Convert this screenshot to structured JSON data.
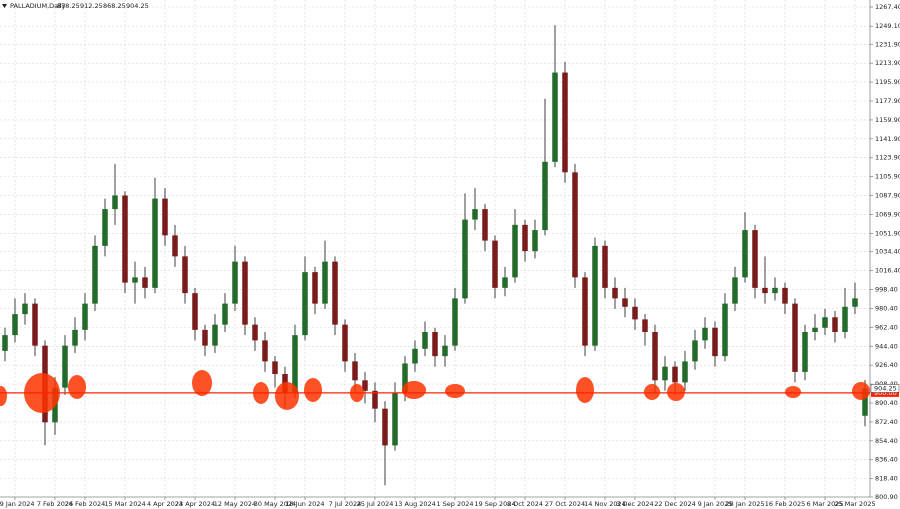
{
  "chart_data": {
    "type": "candlestick",
    "symbol": "PALLADIUM,Daily",
    "up_color": "#236b2b",
    "down_color": "#7b1c1c",
    "wick_color": "#111111",
    "grid": true,
    "level": {
      "value": 900,
      "label": "900.00",
      "color": "#ff2200"
    },
    "xlim": [
      -0.5,
      86.5
    ],
    "ylim": [
      800.9,
      1267.4
    ],
    "open": [
      940,
      955,
      975,
      985,
      945,
      872,
      905,
      945,
      960,
      985,
      1040,
      1075,
      1088,
      1005,
      1010,
      1000,
      1085,
      1050,
      1030,
      995,
      960,
      945,
      965,
      985,
      1025,
      965,
      950,
      930,
      918,
      900,
      955,
      1015,
      985,
      1025,
      965,
      930,
      912,
      902,
      885,
      850,
      900,
      928,
      942,
      958,
      935,
      945,
      990,
      1065,
      1075,
      1045,
      1000,
      1010,
      1060,
      1035,
      1055,
      1120,
      1205,
      1110,
      1010,
      945,
      1040,
      1000,
      990,
      982,
      970,
      958,
      912,
      925,
      910,
      930,
      950,
      962,
      935,
      985,
      1010,
      1055,
      1000,
      995,
      1000,
      985,
      920,
      958,
      962,
      972,
      958,
      982,
      878.25
    ],
    "high": [
      962,
      990,
      995,
      990,
      950,
      915,
      955,
      972,
      995,
      1050,
      1085,
      1118,
      1092,
      1025,
      1020,
      1105,
      1095,
      1060,
      1040,
      1000,
      965,
      975,
      995,
      1040,
      1030,
      972,
      958,
      935,
      925,
      965,
      1030,
      1020,
      1045,
      1030,
      970,
      938,
      920,
      910,
      892,
      910,
      935,
      950,
      968,
      962,
      955,
      1000,
      1090,
      1095,
      1080,
      1050,
      1020,
      1075,
      1065,
      1065,
      1180,
      1250,
      1215,
      1118,
      1015,
      1048,
      1045,
      1010,
      1000,
      990,
      975,
      965,
      935,
      930,
      940,
      960,
      972,
      968,
      995,
      1020,
      1072,
      1060,
      1030,
      1010,
      1005,
      990,
      965,
      975,
      980,
      978,
      1000,
      1005,
      912.25
    ],
    "low": [
      930,
      948,
      965,
      935,
      850,
      860,
      898,
      938,
      950,
      978,
      1030,
      1060,
      995,
      985,
      990,
      995,
      1040,
      1020,
      985,
      950,
      935,
      938,
      958,
      978,
      955,
      940,
      920,
      905,
      885,
      895,
      950,
      975,
      980,
      955,
      920,
      900,
      890,
      872,
      812,
      845,
      892,
      920,
      935,
      925,
      925,
      940,
      985,
      1055,
      1035,
      990,
      992,
      1005,
      1025,
      1028,
      1050,
      1115,
      1100,
      1000,
      935,
      940,
      990,
      980,
      972,
      960,
      945,
      900,
      902,
      898,
      902,
      922,
      942,
      925,
      930,
      978,
      1005,
      990,
      985,
      988,
      975,
      910,
      912,
      950,
      955,
      948,
      952,
      975,
      868.25
    ],
    "close": [
      955,
      975,
      985,
      945,
      872,
      905,
      945,
      960,
      985,
      1040,
      1075,
      1088,
      1005,
      1010,
      1000,
      1085,
      1050,
      1030,
      995,
      960,
      945,
      965,
      985,
      1025,
      965,
      950,
      930,
      918,
      900,
      955,
      1015,
      985,
      1025,
      965,
      930,
      912,
      902,
      885,
      850,
      900,
      928,
      942,
      958,
      935,
      945,
      990,
      1065,
      1075,
      1045,
      1000,
      1010,
      1060,
      1035,
      1055,
      1120,
      1205,
      1110,
      1010,
      945,
      1040,
      1000,
      990,
      982,
      970,
      958,
      912,
      925,
      910,
      930,
      950,
      962,
      935,
      985,
      1010,
      1055,
      1000,
      995,
      1000,
      985,
      920,
      958,
      962,
      972,
      958,
      982,
      990,
      904.25
    ],
    "xticks": [
      {
        "value": 1,
        "label": "19 Jan 2024"
      },
      {
        "value": 5,
        "label": "7 Feb 2024"
      },
      {
        "value": 8,
        "label": "26 Feb 2024"
      },
      {
        "value": 12,
        "label": "15 Mar 2024"
      },
      {
        "value": 16,
        "label": "4 Apr 2024"
      },
      {
        "value": 19,
        "label": "23 Apr 2024"
      },
      {
        "value": 23,
        "label": "12 May 2024"
      },
      {
        "value": 27,
        "label": "30 May 2024"
      },
      {
        "value": 30,
        "label": "18 Jun 2024"
      },
      {
        "value": 34,
        "label": "7 Jul 2024"
      },
      {
        "value": 37,
        "label": "25 Jul 2024"
      },
      {
        "value": 41,
        "label": "13 Aug 2024"
      },
      {
        "value": 45,
        "label": "1 Sep 2024"
      },
      {
        "value": 49,
        "label": "19 Sep 2024"
      },
      {
        "value": 52,
        "label": "8 Oct 2024"
      },
      {
        "value": 56,
        "label": "27 Oct 2024"
      },
      {
        "value": 60,
        "label": "14 Nov 2024"
      },
      {
        "value": 63,
        "label": "3 Dec 2024"
      },
      {
        "value": 67,
        "label": "22 Dec 2024"
      },
      {
        "value": 71,
        "label": "9 Jan 2025"
      },
      {
        "value": 74,
        "label": "28 Jan 2025"
      },
      {
        "value": 78,
        "label": "16 Feb 2025"
      },
      {
        "value": 82,
        "label": "6 Mar 2025"
      },
      {
        "value": 85,
        "label": "25 Mar 2025"
      }
    ],
    "yticks": [
      {
        "value": 1267.4,
        "label": "1267.40"
      },
      {
        "value": 1249.1,
        "label": "1249.10"
      },
      {
        "value": 1231.9,
        "label": "1231.90"
      },
      {
        "value": 1213.9,
        "label": "1213.90"
      },
      {
        "value": 1195.9,
        "label": "1195.90"
      },
      {
        "value": 1177.9,
        "label": "1177.90"
      },
      {
        "value": 1159.9,
        "label": "1159.90"
      },
      {
        "value": 1141.9,
        "label": "1141.90"
      },
      {
        "value": 1123.9,
        "label": "1123.90"
      },
      {
        "value": 1105.9,
        "label": "1105.90"
      },
      {
        "value": 1087.9,
        "label": "1087.90"
      },
      {
        "value": 1069.9,
        "label": "1069.90"
      },
      {
        "value": 1051.9,
        "label": "1051.90"
      },
      {
        "value": 1034.4,
        "label": "1034.40"
      },
      {
        "value": 1016.4,
        "label": "1016.40"
      },
      {
        "value": 998.4,
        "label": "998.40"
      },
      {
        "value": 980.4,
        "label": "980.40"
      },
      {
        "value": 962.4,
        "label": "962.40"
      },
      {
        "value": 944.4,
        "label": "944.40"
      },
      {
        "value": 926.4,
        "label": "926.40"
      },
      {
        "value": 908.4,
        "label": "908.40"
      },
      {
        "value": 890.4,
        "label": "890.40"
      },
      {
        "value": 872.4,
        "label": "872.40"
      },
      {
        "value": 854.4,
        "label": "854.40"
      },
      {
        "value": 836.4,
        "label": "836.40"
      },
      {
        "value": 818.4,
        "label": "818.40"
      },
      {
        "value": 800.9,
        "label": "800.90"
      }
    ]
  }
}
